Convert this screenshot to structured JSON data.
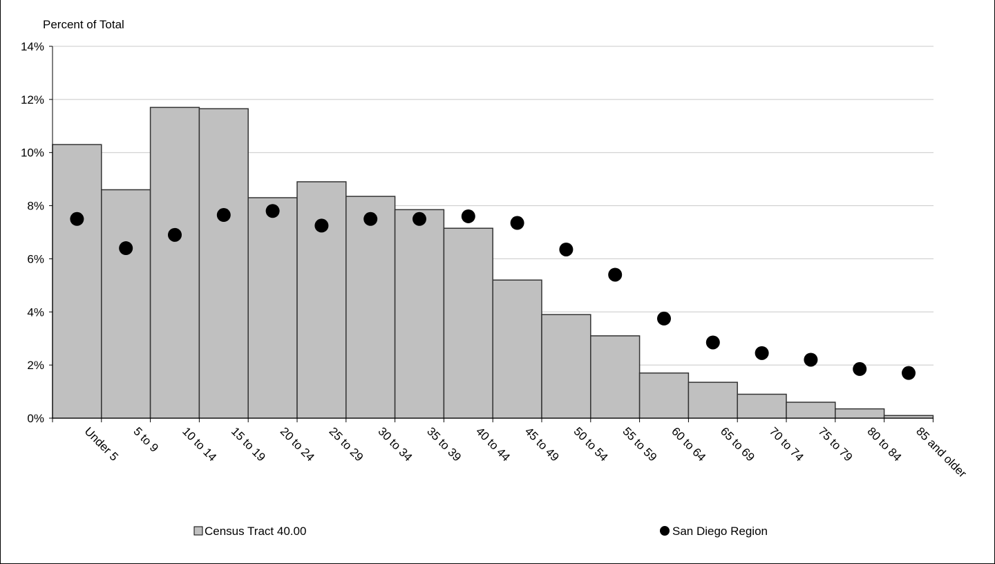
{
  "chart_data": {
    "type": "bar",
    "title": "",
    "ylabel": "Percent of Total",
    "xlabel": "",
    "ylim": [
      0,
      14
    ],
    "y_ticks": [
      0,
      2,
      4,
      6,
      8,
      10,
      12,
      14
    ],
    "y_tick_suffix": "%",
    "grid": true,
    "legend_position": "bottom",
    "categories": [
      "Under 5",
      "5 to 9",
      "10 to 14",
      "15 to 19",
      "20 to 24",
      "25 to 29",
      "30 to 34",
      "35 to 39",
      "40 to 44",
      "45 to 49",
      "50 to 54",
      "55 to 59",
      "60 to 64",
      "65 to 69",
      "70 to 74",
      "75 to 79",
      "80 to 84",
      "85 and older"
    ],
    "series": [
      {
        "name": "Census Tract 40.00",
        "kind": "bar",
        "color": "#c0c0c0",
        "values": [
          10.3,
          8.6,
          11.7,
          11.65,
          8.3,
          8.9,
          8.35,
          7.85,
          7.15,
          5.2,
          3.9,
          3.1,
          1.7,
          1.35,
          0.9,
          0.6,
          0.35,
          0.1
        ]
      },
      {
        "name": "San Diego Region",
        "kind": "marker",
        "color": "#000000",
        "values": [
          7.5,
          6.4,
          6.9,
          7.65,
          7.8,
          7.25,
          7.5,
          7.5,
          7.6,
          7.35,
          6.35,
          5.4,
          3.75,
          2.85,
          2.45,
          2.2,
          1.85,
          1.7
        ]
      }
    ]
  }
}
